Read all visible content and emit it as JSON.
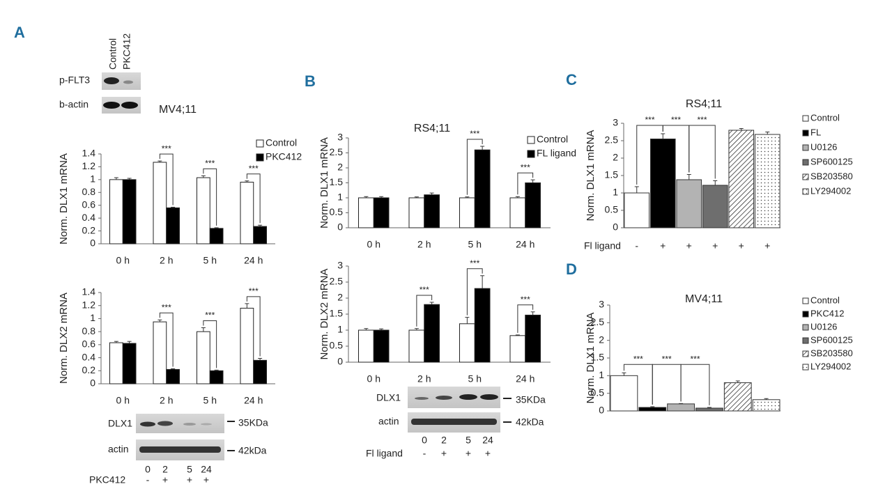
{
  "panels": [
    "A",
    "B",
    "C",
    "D"
  ],
  "blots": {
    "a_top": {
      "lanes": [
        "Control",
        "PKC412"
      ],
      "rows": [
        "p-FLT3",
        "b-actin"
      ]
    },
    "a_bottom": {
      "rows": [
        "DLX1",
        "actin"
      ],
      "sizes": [
        "35KDa",
        "42kDa"
      ],
      "lanes": [
        "0",
        "2",
        "5",
        "24"
      ],
      "treatment": "PKC412",
      "signs": [
        "-",
        "+",
        "+",
        "+"
      ]
    },
    "b": {
      "rows": [
        "DLX1",
        "actin"
      ],
      "sizes": [
        "35KDa",
        "42kDa"
      ],
      "lanes": [
        "0",
        "2",
        "5",
        "24"
      ],
      "treatment": "Fl ligand",
      "signs": [
        "-",
        "+",
        "+",
        "+"
      ]
    }
  },
  "chart_data": [
    {
      "type": "bar",
      "title": "MV4;11",
      "ylabel": "Norm. DLX1 mRNA",
      "categories": [
        "0 h",
        "2 h",
        "5 h",
        "24 h"
      ],
      "series": [
        {
          "name": "Control",
          "color": "#ffffff",
          "values": [
            1,
            1.27,
            1.03,
            0.96
          ],
          "errors": [
            0.03,
            0.02,
            0.03,
            0.02
          ]
        },
        {
          "name": "PKC412",
          "color": "#000000",
          "values": [
            1,
            0.56,
            0.24,
            0.27
          ],
          "errors": [
            0.02,
            0.01,
            0.01,
            0.02
          ]
        }
      ],
      "ylim": [
        0,
        1.4
      ],
      "yticks": [
        0,
        0.2,
        0.4,
        0.6,
        0.8,
        1,
        1.2,
        1.4
      ],
      "annotations": [
        "***",
        "***",
        "***"
      ],
      "legend": "upper right"
    },
    {
      "type": "bar",
      "ylabel": "Norm. DLX2 mRNA",
      "categories": [
        "0 h",
        "2 h",
        "5 h",
        "24 h"
      ],
      "series": [
        {
          "name": "Control",
          "color": "#ffffff",
          "values": [
            0.63,
            0.95,
            0.8,
            1.16
          ],
          "errors": [
            0.02,
            0.03,
            0.06,
            0.07
          ]
        },
        {
          "name": "PKC412",
          "color": "#000000",
          "values": [
            0.62,
            0.22,
            0.2,
            0.36
          ],
          "errors": [
            0.03,
            0.01,
            0.01,
            0.03
          ]
        }
      ],
      "ylim": [
        0,
        1.4
      ],
      "yticks": [
        0,
        0.2,
        0.4,
        0.6,
        0.8,
        1,
        1.2,
        1.4
      ],
      "annotations": [
        "***",
        "***",
        "***"
      ]
    },
    {
      "type": "bar",
      "title": "RS4;11",
      "ylabel": "Norm. DLX1 mRNA",
      "categories": [
        "0 h",
        "2 h",
        "5 h",
        "24 h"
      ],
      "series": [
        {
          "name": "Control",
          "color": "#ffffff",
          "values": [
            1,
            1,
            1,
            1
          ],
          "errors": [
            0.04,
            0.03,
            0.03,
            0.04
          ]
        },
        {
          "name": "FL ligand",
          "color": "#000000",
          "values": [
            1,
            1.1,
            2.6,
            1.5
          ],
          "errors": [
            0.04,
            0.06,
            0.12,
            0.1
          ]
        }
      ],
      "ylim": [
        0,
        3
      ],
      "yticks": [
        0,
        0.5,
        1,
        1.5,
        2,
        2.5,
        3
      ],
      "annotations": [
        "***",
        "***"
      ],
      "legend": "upper right"
    },
    {
      "type": "bar",
      "ylabel": "Norm. DLX2 mRNA",
      "categories": [
        "0 h",
        "2 h",
        "5 h",
        "24 h"
      ],
      "series": [
        {
          "name": "Control",
          "color": "#ffffff",
          "values": [
            1,
            1,
            1.2,
            0.83
          ],
          "errors": [
            0.05,
            0.05,
            0.2,
            0.02
          ]
        },
        {
          "name": "FL ligand",
          "color": "#000000",
          "values": [
            1,
            1.8,
            2.3,
            1.47
          ],
          "errors": [
            0.04,
            0.07,
            0.4,
            0.1
          ]
        }
      ],
      "ylim": [
        0,
        3
      ],
      "yticks": [
        0,
        0.5,
        1,
        1.5,
        2,
        2.5,
        3
      ],
      "annotations": [
        "***",
        "***",
        "***"
      ]
    },
    {
      "type": "bar",
      "title": "RS4;11",
      "ylabel": "Norm. DLX1 mRNA",
      "xlabel": "Fl ligand",
      "categories": [
        "-",
        "+",
        "+",
        "+",
        "+",
        "+"
      ],
      "bar_names": [
        "Control",
        "FL",
        "U0126",
        "SP600125",
        "SB203580",
        "LY294002"
      ],
      "fills": [
        "#ffffff",
        "#000000",
        "#b3b3b3",
        "#6e6e6e",
        "hatch",
        "dots"
      ],
      "values": [
        1,
        2.55,
        1.38,
        1.22,
        2.8,
        2.68
      ],
      "errors": [
        0.18,
        0.15,
        0.15,
        0.13,
        0.05,
        0.07
      ],
      "ylim": [
        0,
        3
      ],
      "yticks": [
        0,
        0.5,
        1,
        1.5,
        2,
        2.5,
        3
      ],
      "annotations": [
        "***",
        "***",
        "***"
      ],
      "legend": "right"
    },
    {
      "type": "bar",
      "title": "MV4;11",
      "ylabel": "Norm. DLX1 mRNA",
      "bar_names": [
        "Control",
        "PKC412",
        "U0126",
        "SP600125",
        "SB203580",
        "LY294002"
      ],
      "fills": [
        "#ffffff",
        "#000000",
        "#b3b3b3",
        "#6e6e6e",
        "hatch",
        "dots"
      ],
      "values": [
        1,
        0.1,
        0.2,
        0.08,
        0.8,
        0.32
      ],
      "errors": [
        0.08,
        0.02,
        0.01,
        0.02,
        0.05,
        0.03
      ],
      "ylim": [
        0,
        3
      ],
      "yticks": [
        0,
        0.5,
        1,
        1.5,
        2,
        2.5,
        3
      ],
      "annotations": [
        "***",
        "***",
        "***"
      ],
      "legend": "right"
    }
  ]
}
